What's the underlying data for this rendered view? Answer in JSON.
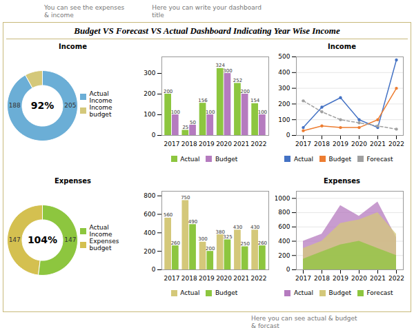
{
  "title": "Budget VS Forecast VS Actual Dashboard Indicating Year Wise Income",
  "annotations": [
    "You can see the expenses\n& income",
    "Here you can write your dashboard\ntitle",
    "Here you can see actual & budget\n& forcast"
  ],
  "chart_data": [
    {
      "type": "donut",
      "title": "Income",
      "categories": [
        "Actual Income",
        "Income budget"
      ],
      "values": [
        92,
        8
      ],
      "colors": [
        "#6baed6",
        "#d4c87a"
      ],
      "annotations": [
        "92%",
        "188",
        "205"
      ],
      "legend": "right"
    },
    {
      "type": "bar",
      "categories": [
        "2017",
        "2018",
        "2019",
        "2020",
        "2021",
        "2022"
      ],
      "series": [
        {
          "name": "Actual",
          "color": "#8dc63f",
          "values": [
            200,
            25,
            156,
            324,
            252,
            154
          ]
        },
        {
          "name": "Budget",
          "color": "#b57bbf",
          "values": [
            100,
            50,
            100,
            300,
            200,
            100
          ]
        }
      ],
      "ylim": [
        0,
        380
      ],
      "yticks": [
        0,
        100,
        200,
        300
      ],
      "data_labels": true,
      "legend": "bottom"
    },
    {
      "type": "line",
      "title": "Income",
      "categories": [
        "2017",
        "2018",
        "2019",
        "2020",
        "2021",
        "2022"
      ],
      "series": [
        {
          "name": "Actual",
          "color": "#4472c4",
          "values": [
            50,
            180,
            240,
            100,
            50,
            480
          ],
          "marker": "circle",
          "line_style": "solid"
        },
        {
          "name": "Budget",
          "color": "#ed7d31",
          "values": [
            30,
            60,
            50,
            50,
            100,
            300
          ],
          "marker": "circle",
          "line_style": "solid"
        },
        {
          "name": "Forecast",
          "color": "#a0a0a0",
          "values": [
            220,
            150,
            100,
            80,
            60,
            40
          ],
          "marker": "circle",
          "line_style": "dashed"
        }
      ],
      "ylim": [
        0,
        500
      ],
      "yticks": [
        0,
        100,
        200,
        300,
        400,
        500
      ],
      "grid": true,
      "legend": "bottom"
    },
    {
      "type": "donut",
      "title": "Expenses",
      "categories": [
        "Actual Income",
        "Expenses budget"
      ],
      "values": [
        52,
        48
      ],
      "colors": [
        "#8dc63f",
        "#d4c050"
      ],
      "annotations": [
        "104%",
        "147",
        "147"
      ],
      "legend": "right"
    },
    {
      "type": "bar",
      "categories": [
        "2017",
        "2018",
        "2019",
        "2020",
        "2021",
        "2022"
      ],
      "series": [
        {
          "name": "Actual",
          "color": "#d4c87a",
          "values": [
            560,
            750,
            300,
            380,
            430,
            430
          ]
        },
        {
          "name": "Budget",
          "color": "#8dc63f",
          "values": [
            260,
            490,
            200,
            325,
            250,
            260
          ]
        }
      ],
      "ylim": [
        0,
        850
      ],
      "yticks": [
        0,
        200,
        400,
        600,
        800
      ],
      "data_labels": true,
      "legend": "bottom"
    },
    {
      "type": "area",
      "title": "Expenses",
      "categories": [
        "2017",
        "2018",
        "2019",
        "2020",
        "2021",
        "2022"
      ],
      "series": [
        {
          "name": "Actual",
          "color": "#b57bbf",
          "values": [
            400,
            500,
            900,
            750,
            950,
            450
          ]
        },
        {
          "name": "Budget",
          "color": "#d4c87a",
          "values": [
            300,
            400,
            650,
            700,
            800,
            500
          ]
        },
        {
          "name": "Forecast",
          "color": "#8dc63f",
          "values": [
            150,
            250,
            350,
            400,
            300,
            200
          ]
        }
      ],
      "ylim": [
        0,
        1100
      ],
      "yticks": [
        0,
        200,
        400,
        600,
        800,
        1000
      ],
      "grid": true,
      "stacked": false,
      "legend": "bottom"
    }
  ]
}
